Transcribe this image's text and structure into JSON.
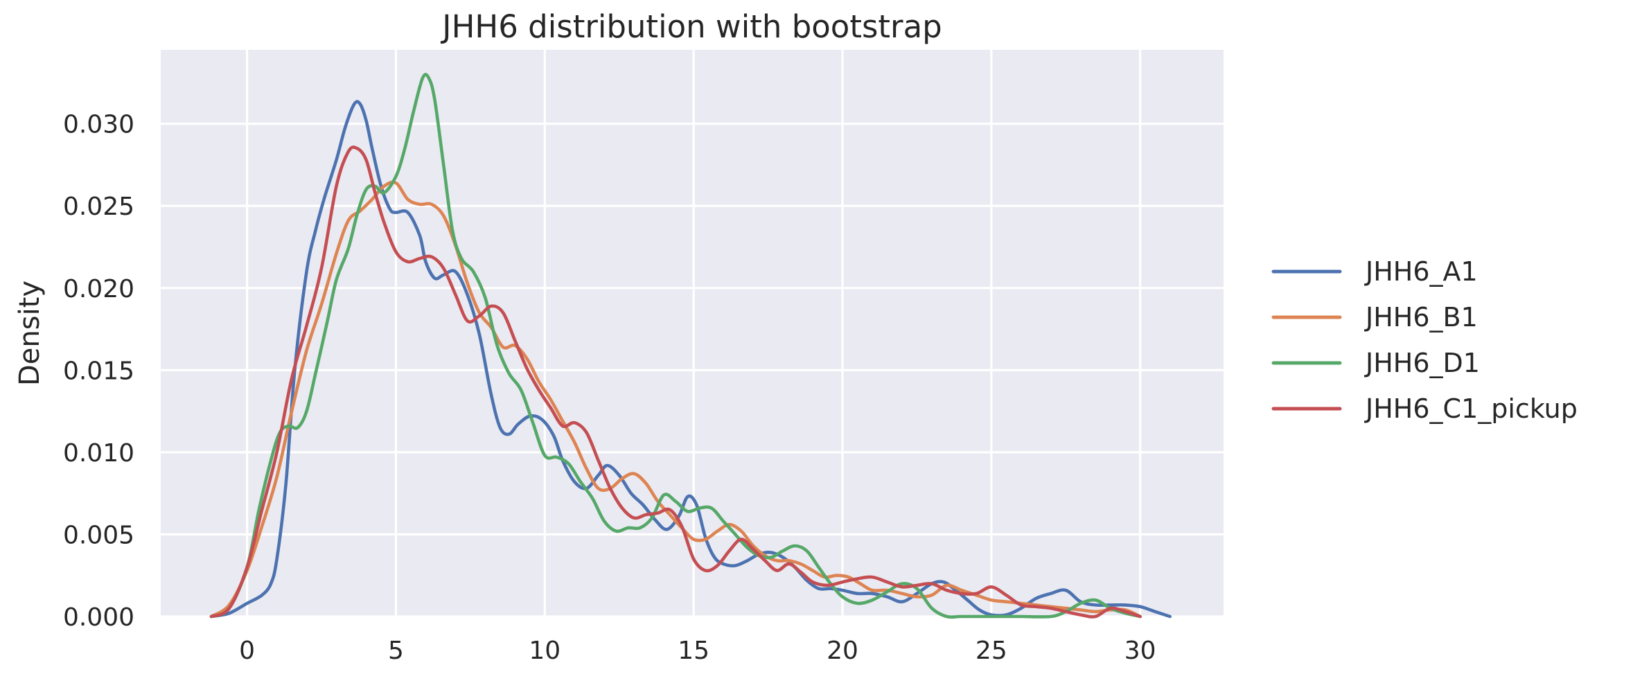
{
  "chart_data": {
    "type": "line",
    "title": "JHH6 distribution with bootstrap",
    "xlabel": "",
    "ylabel": "Density",
    "xlim": [
      -2.9,
      32.8
    ],
    "ylim": [
      0,
      0.0345
    ],
    "x_ticks": [
      0,
      5,
      10,
      15,
      20,
      25,
      30
    ],
    "x_tick_labels": [
      "0",
      "5",
      "10",
      "15",
      "20",
      "25",
      "30"
    ],
    "y_ticks": [
      0,
      0.005,
      0.01,
      0.015,
      0.02,
      0.025,
      0.03
    ],
    "y_tick_labels": [
      "0.000",
      "0.005",
      "0.010",
      "0.015",
      "0.020",
      "0.025",
      "0.030"
    ],
    "grid": true,
    "background": "#eaeaf2",
    "legend_position": "right, outside plot, vertically centered",
    "series": [
      {
        "name": "JHH6_A1",
        "color": "#4c72b0",
        "x": [
          -1.2,
          -0.6,
          0,
          0.5,
          0.8,
          1,
          1.3,
          1.6,
          2,
          2.3,
          2.6,
          3,
          3.3,
          3.6,
          3.8,
          4,
          4.2,
          4.5,
          4.8,
          5,
          5.4,
          5.8,
          6,
          6.3,
          6.6,
          7,
          7.4,
          7.8,
          8.2,
          8.5,
          8.8,
          9.1,
          9.5,
          9.9,
          10.3,
          10.6,
          11,
          11.4,
          11.8,
          12.1,
          12.5,
          12.9,
          13.3,
          13.7,
          14.1,
          14.5,
          14.8,
          15.1,
          15.4,
          15.7,
          16,
          16.4,
          16.8,
          17.2,
          17.6,
          18,
          18.4,
          18.8,
          19.2,
          19.6,
          20,
          20.5,
          21,
          21.5,
          22,
          22.5,
          23,
          23.4,
          23.8,
          24.2,
          24.6,
          25,
          25.5,
          26,
          26.5,
          27,
          27.5,
          28,
          28.5,
          29,
          29.5,
          30,
          30.5,
          31
        ],
        "values": [
          0,
          0.0002,
          0.0008,
          0.0013,
          0.002,
          0.0035,
          0.008,
          0.015,
          0.021,
          0.0235,
          0.0255,
          0.0278,
          0.0298,
          0.0312,
          0.0312,
          0.0302,
          0.0285,
          0.0262,
          0.0248,
          0.0246,
          0.0246,
          0.0232,
          0.0216,
          0.0206,
          0.0208,
          0.021,
          0.0196,
          0.0172,
          0.0135,
          0.0115,
          0.0111,
          0.0117,
          0.0122,
          0.012,
          0.011,
          0.0095,
          0.0082,
          0.0078,
          0.0086,
          0.0092,
          0.0086,
          0.0075,
          0.0068,
          0.0059,
          0.0053,
          0.0061,
          0.0073,
          0.0068,
          0.0048,
          0.0036,
          0.0032,
          0.0031,
          0.0034,
          0.0038,
          0.0039,
          0.0036,
          0.003,
          0.0022,
          0.0017,
          0.0017,
          0.0016,
          0.0014,
          0.0014,
          0.0012,
          0.0009,
          0.0014,
          0.002,
          0.0021,
          0.0016,
          0.001,
          0.0004,
          0.0001,
          0.0001,
          0.0005,
          0.0011,
          0.0014,
          0.0016,
          0.0009,
          0.0007,
          0.0007,
          0.0007,
          0.0006,
          0.0003,
          0
        ]
      },
      {
        "name": "JHH6_B1",
        "color": "#dd8452",
        "x": [
          -1.2,
          -0.6,
          0,
          0.5,
          1,
          1.5,
          2,
          2.5,
          3,
          3.4,
          3.8,
          4.2,
          4.6,
          5,
          5.4,
          5.8,
          6.2,
          6.6,
          7,
          7.4,
          7.8,
          8.2,
          8.6,
          9,
          9.4,
          9.8,
          10.2,
          10.6,
          11,
          11.4,
          11.8,
          12.2,
          12.6,
          13,
          13.4,
          13.8,
          14.2,
          14.6,
          15,
          15.4,
          15.8,
          16.2,
          16.6,
          17,
          17.4,
          17.8,
          18.2,
          18.6,
          19,
          19.4,
          19.8,
          20.2,
          20.6,
          21,
          21.5,
          22,
          22.5,
          23,
          23.5,
          24,
          24.5,
          25,
          25.5,
          26,
          26.5,
          27,
          27.5,
          28,
          28.5,
          29,
          29.5,
          30
        ],
        "values": [
          0,
          0.0007,
          0.0028,
          0.0055,
          0.0085,
          0.0125,
          0.0162,
          0.019,
          0.0221,
          0.0241,
          0.0247,
          0.0254,
          0.0262,
          0.0264,
          0.0254,
          0.0251,
          0.0251,
          0.0244,
          0.0226,
          0.0203,
          0.0185,
          0.0176,
          0.0164,
          0.0165,
          0.0157,
          0.0143,
          0.0132,
          0.0119,
          0.0106,
          0.009,
          0.0078,
          0.0078,
          0.0084,
          0.0087,
          0.0081,
          0.007,
          0.0062,
          0.0054,
          0.0047,
          0.0047,
          0.0052,
          0.0056,
          0.0052,
          0.0043,
          0.0037,
          0.0034,
          0.0034,
          0.0032,
          0.0028,
          0.0024,
          0.0025,
          0.0024,
          0.002,
          0.0016,
          0.0016,
          0.0014,
          0.0012,
          0.0013,
          0.0019,
          0.0016,
          0.0013,
          0.001,
          0.0009,
          0.0008,
          0.0007,
          0.0006,
          0.0005,
          0.0004,
          0.0003,
          0.0004,
          0.0004,
          0
        ]
      },
      {
        "name": "JHH6_D1",
        "color": "#55a868",
        "x": [
          -1.2,
          -0.6,
          0,
          0.4,
          0.8,
          1.1,
          1.4,
          1.7,
          2,
          2.3,
          2.7,
          3,
          3.4,
          3.7,
          4,
          4.3,
          4.6,
          5,
          5.3,
          5.6,
          5.9,
          6.1,
          6.3,
          6.6,
          6.9,
          7.2,
          7.6,
          8,
          8.4,
          8.8,
          9.2,
          9.6,
          10,
          10.4,
          10.8,
          11.2,
          11.6,
          12,
          12.4,
          12.8,
          13.2,
          13.6,
          14,
          14.4,
          14.8,
          15.2,
          15.6,
          16,
          16.4,
          16.8,
          17.2,
          17.6,
          18,
          18.4,
          18.8,
          19.2,
          19.6,
          20,
          20.5,
          21,
          21.5,
          22,
          22.5,
          23,
          23.5,
          24,
          25,
          26,
          27,
          27.5,
          28,
          28.5,
          29,
          29.5,
          30
        ],
        "values": [
          0,
          0.0005,
          0.003,
          0.0065,
          0.0095,
          0.0112,
          0.0116,
          0.0115,
          0.0125,
          0.0148,
          0.018,
          0.0205,
          0.0224,
          0.0245,
          0.026,
          0.0262,
          0.0258,
          0.0268,
          0.0285,
          0.0308,
          0.0328,
          0.0328,
          0.0315,
          0.0275,
          0.0235,
          0.0218,
          0.021,
          0.0194,
          0.0165,
          0.0148,
          0.0138,
          0.0118,
          0.0098,
          0.0097,
          0.0093,
          0.0082,
          0.0072,
          0.0058,
          0.0052,
          0.0054,
          0.0054,
          0.006,
          0.0074,
          0.007,
          0.0064,
          0.0066,
          0.0066,
          0.0058,
          0.005,
          0.0042,
          0.0037,
          0.0036,
          0.004,
          0.0043,
          0.004,
          0.003,
          0.002,
          0.0012,
          0.0008,
          0.001,
          0.0015,
          0.002,
          0.0017,
          0.0005,
          0,
          0,
          0,
          0,
          0,
          0.0003,
          0.0008,
          0.001,
          0.0005,
          0.0002,
          0
        ]
      },
      {
        "name": "JHH6_C1_pickup",
        "color": "#c44e52",
        "x": [
          -1.2,
          -0.6,
          0,
          0.5,
          1,
          1.5,
          2,
          2.5,
          3,
          3.4,
          3.7,
          4,
          4.3,
          4.6,
          5,
          5.4,
          5.8,
          6.2,
          6.6,
          7,
          7.4,
          7.8,
          8.2,
          8.6,
          9,
          9.4,
          9.8,
          10.2,
          10.6,
          11,
          11.4,
          11.8,
          12.2,
          12.6,
          13,
          13.4,
          13.8,
          14.2,
          14.6,
          15,
          15.4,
          15.8,
          16.2,
          16.6,
          17,
          17.4,
          17.8,
          18.2,
          18.6,
          19,
          19.5,
          20,
          20.5,
          21,
          21.5,
          22,
          22.5,
          23,
          23.5,
          24,
          24.5,
          25,
          25.5,
          26,
          26.5,
          27,
          27.5,
          28,
          28.5,
          29,
          29.5,
          30
        ],
        "values": [
          0,
          0.0005,
          0.003,
          0.0065,
          0.01,
          0.0145,
          0.0177,
          0.0212,
          0.0262,
          0.0283,
          0.0285,
          0.0278,
          0.0258,
          0.024,
          0.0222,
          0.0216,
          0.0218,
          0.0219,
          0.0212,
          0.0196,
          0.018,
          0.0183,
          0.0189,
          0.0185,
          0.0168,
          0.0151,
          0.0138,
          0.0127,
          0.0116,
          0.0118,
          0.0112,
          0.0095,
          0.0078,
          0.0066,
          0.006,
          0.0062,
          0.0063,
          0.0065,
          0.0055,
          0.0035,
          0.0028,
          0.0031,
          0.004,
          0.0047,
          0.0041,
          0.0034,
          0.0028,
          0.0032,
          0.0027,
          0.0021,
          0.0019,
          0.0021,
          0.0023,
          0.0024,
          0.0021,
          0.0018,
          0.0019,
          0.002,
          0.0016,
          0.0014,
          0.0014,
          0.0018,
          0.0013,
          0.0007,
          0.0006,
          0.0005,
          0.0003,
          0.0001,
          0,
          0.0005,
          0.0003,
          0
        ]
      }
    ]
  }
}
